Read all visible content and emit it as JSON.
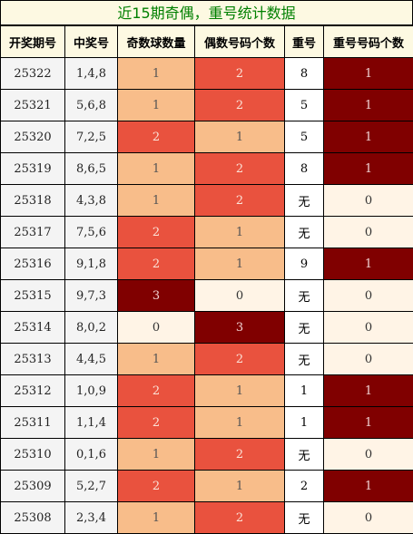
{
  "title": "近15期奇偶，重号统计数据",
  "headers": [
    "开奖期号",
    "中奖号",
    "奇数球数量",
    "偶数号码个数",
    "重号",
    "重号号码个数"
  ],
  "rows": [
    {
      "issue": "25322",
      "numbers": "1,4,8",
      "odd": "1",
      "even": "2",
      "repeat": "8",
      "repeat_count": "1"
    },
    {
      "issue": "25321",
      "numbers": "5,6,8",
      "odd": "1",
      "even": "2",
      "repeat": "5",
      "repeat_count": "1"
    },
    {
      "issue": "25320",
      "numbers": "7,2,5",
      "odd": "2",
      "even": "1",
      "repeat": "5",
      "repeat_count": "1"
    },
    {
      "issue": "25319",
      "numbers": "8,6,5",
      "odd": "1",
      "even": "2",
      "repeat": "8",
      "repeat_count": "1"
    },
    {
      "issue": "25318",
      "numbers": "4,3,8",
      "odd": "1",
      "even": "2",
      "repeat": "无",
      "repeat_count": "0"
    },
    {
      "issue": "25317",
      "numbers": "7,5,6",
      "odd": "2",
      "even": "1",
      "repeat": "无",
      "repeat_count": "0"
    },
    {
      "issue": "25316",
      "numbers": "9,1,8",
      "odd": "2",
      "even": "1",
      "repeat": "9",
      "repeat_count": "1"
    },
    {
      "issue": "25315",
      "numbers": "9,7,3",
      "odd": "3",
      "even": "0",
      "repeat": "无",
      "repeat_count": "0"
    },
    {
      "issue": "25314",
      "numbers": "8,0,2",
      "odd": "0",
      "even": "3",
      "repeat": "无",
      "repeat_count": "0"
    },
    {
      "issue": "25313",
      "numbers": "4,4,5",
      "odd": "1",
      "even": "2",
      "repeat": "无",
      "repeat_count": "0"
    },
    {
      "issue": "25312",
      "numbers": "1,0,9",
      "odd": "2",
      "even": "1",
      "repeat": "1",
      "repeat_count": "1"
    },
    {
      "issue": "25311",
      "numbers": "1,1,4",
      "odd": "2",
      "even": "1",
      "repeat": "1",
      "repeat_count": "1"
    },
    {
      "issue": "25310",
      "numbers": "0,1,6",
      "odd": "1",
      "even": "2",
      "repeat": "无",
      "repeat_count": "0"
    },
    {
      "issue": "25309",
      "numbers": "5,2,7",
      "odd": "2",
      "even": "1",
      "repeat": "2",
      "repeat_count": "1"
    },
    {
      "issue": "25308",
      "numbers": "2,3,4",
      "odd": "1",
      "even": "2",
      "repeat": "无",
      "repeat_count": "0"
    }
  ],
  "colors": {
    "level0": "#fff4e6",
    "level1": "#f8bd8a",
    "level2": "#e9523e",
    "level3": "#800000",
    "header_bg": "#fdf9e2",
    "title_text": "#008000"
  }
}
